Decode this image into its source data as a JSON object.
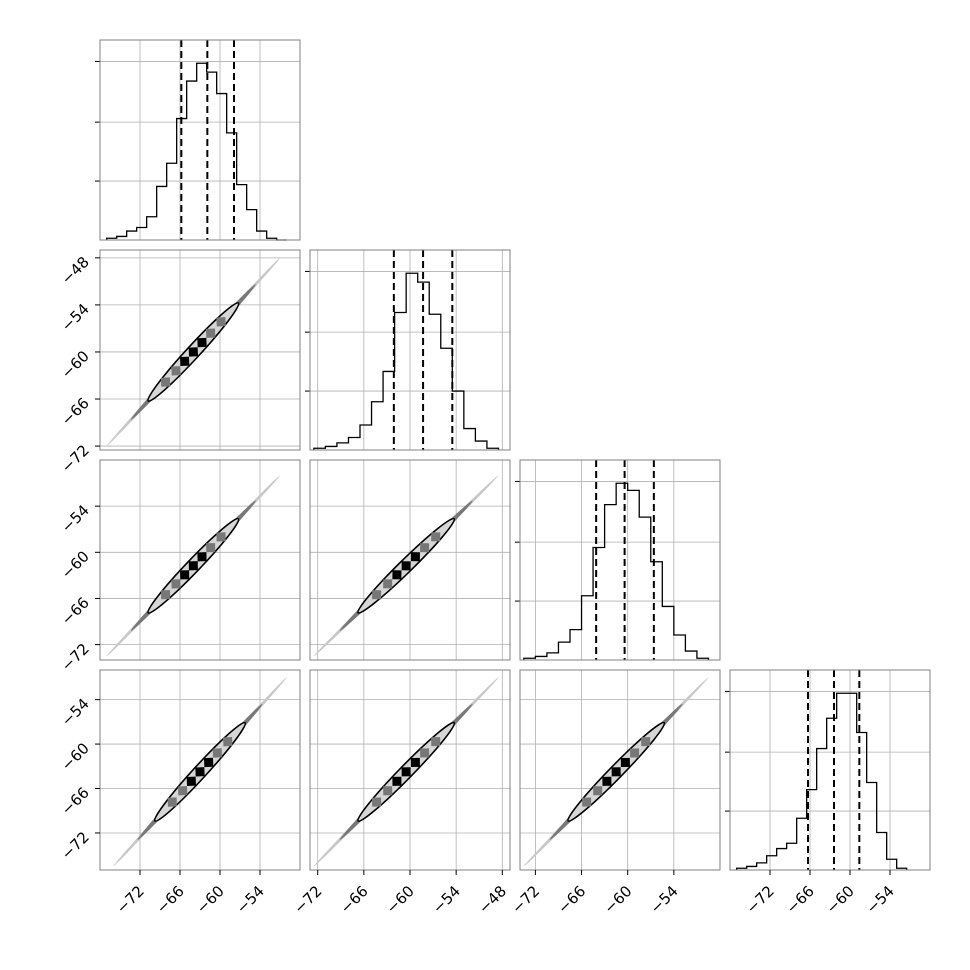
{
  "chart_data": {
    "type": "corner",
    "n_params": 4,
    "colors": {
      "line": "#000000",
      "grid": "#b0b0b0",
      "frame": "#808080"
    },
    "grid": true,
    "histograms": [
      {
        "param": 0,
        "x_range": [
          -78,
          -48
        ],
        "bin_edges": [
          -77,
          -75.5,
          -74,
          -72.5,
          -71,
          -69.5,
          -68,
          -66.5,
          -65,
          -63.5,
          -62,
          -60.5,
          -59,
          -57.5,
          -56,
          -54.5,
          -53,
          -51.5,
          -50
        ],
        "counts": [
          0.01,
          0.02,
          0.05,
          0.07,
          0.13,
          0.3,
          0.43,
          0.68,
          0.89,
          0.99,
          0.94,
          0.82,
          0.6,
          0.31,
          0.17,
          0.05,
          0.01,
          0
        ],
        "quantiles": [
          -65.8,
          -61.9,
          -57.9
        ]
      },
      {
        "param": 1,
        "x_range": [
          -73,
          -47
        ],
        "bin_edges": [
          -72.5,
          -71,
          -69.5,
          -68,
          -66.5,
          -65,
          -63.5,
          -62,
          -60.5,
          -59,
          -57.5,
          -56,
          -54.5,
          -53,
          -51.5,
          -50,
          -48.5
        ],
        "counts": [
          0.01,
          0.02,
          0.04,
          0.07,
          0.14,
          0.27,
          0.44,
          0.77,
          0.99,
          0.94,
          0.76,
          0.57,
          0.33,
          0.12,
          0.05,
          0.01
        ],
        "quantiles": [
          -62.1,
          -58.3,
          -54.5
        ]
      },
      {
        "param": 2,
        "x_range": [
          -74,
          -48
        ],
        "bin_edges": [
          -73.5,
          -72,
          -70.5,
          -69,
          -67.5,
          -66,
          -64.5,
          -63,
          -61.5,
          -60,
          -58.5,
          -57,
          -55.5,
          -54,
          -52.5,
          -51,
          -49.5
        ],
        "counts": [
          0.01,
          0.02,
          0.04,
          0.1,
          0.17,
          0.36,
          0.63,
          0.87,
          0.99,
          0.95,
          0.8,
          0.55,
          0.3,
          0.14,
          0.05,
          0.01
        ],
        "quantiles": [
          -64.1,
          -60.4,
          -56.6
        ]
      },
      {
        "param": 3,
        "x_range": [
          -78,
          -48
        ],
        "bin_edges": [
          -77,
          -75.5,
          -74,
          -72.5,
          -71,
          -69.5,
          -68,
          -66.5,
          -65,
          -63.5,
          -62,
          -60.5,
          -59,
          -57.5,
          -56,
          -54.5,
          -53,
          -51.5
        ],
        "counts": [
          0.01,
          0.02,
          0.04,
          0.08,
          0.12,
          0.15,
          0.29,
          0.45,
          0.68,
          0.85,
          0.99,
          0.99,
          0.77,
          0.49,
          0.21,
          0.06,
          0.01
        ],
        "quantiles": [
          -66.3,
          -62.4,
          -58.6
        ]
      }
    ],
    "pairs": [
      {
        "row": 1,
        "col": 0,
        "x_range": [
          -78,
          -48
        ],
        "y_range": [
          -72.5,
          -47.0
        ],
        "x_span": [
          -77,
          -51
        ],
        "y_span": [
          -72,
          -48
        ]
      },
      {
        "row": 2,
        "col": 0,
        "x_range": [
          -78,
          -48
        ],
        "y_range": [
          -74.0,
          -48.0
        ],
        "x_span": [
          -77,
          -51
        ],
        "y_span": [
          -73.5,
          -50
        ]
      },
      {
        "row": 2,
        "col": 1,
        "x_range": [
          -73,
          -47
        ],
        "y_range": [
          -74.0,
          -48.0
        ],
        "x_span": [
          -72.5,
          -48.5
        ],
        "y_span": [
          -73.5,
          -50
        ]
      },
      {
        "row": 3,
        "col": 0,
        "x_range": [
          -78,
          -48
        ],
        "y_range": [
          -77.0,
          -50.0
        ],
        "x_span": [
          -76,
          -50
        ],
        "y_span": [
          -76.5,
          -51
        ]
      },
      {
        "row": 3,
        "col": 1,
        "x_range": [
          -73,
          -47
        ],
        "y_range": [
          -77.0,
          -50.0
        ],
        "x_span": [
          -72.5,
          -48.5
        ],
        "y_span": [
          -76.5,
          -51
        ]
      },
      {
        "row": 3,
        "col": 2,
        "x_range": [
          -74,
          -48
        ],
        "y_range": [
          -77.0,
          -50.0
        ],
        "x_span": [
          -73.5,
          -49.5
        ],
        "y_span": [
          -76.5,
          -51
        ]
      }
    ],
    "x_ticks": {
      "col0": [
        "−72",
        "−66",
        "−60",
        "−54"
      ],
      "col1": [
        "−72",
        "−66",
        "−60",
        "−54",
        "−48"
      ],
      "col2": [
        "−72",
        "−66",
        "−60",
        "−54"
      ],
      "col3": [
        "−72",
        "−66",
        "−60",
        "−54"
      ]
    },
    "y_ticks": {
      "row1": [
        "−48",
        "−54",
        "−60",
        "−66",
        "−72"
      ],
      "row2": [
        "−54",
        "−60",
        "−66",
        "−72"
      ],
      "row3": [
        "−54",
        "−60",
        "−66",
        "−72"
      ]
    }
  }
}
